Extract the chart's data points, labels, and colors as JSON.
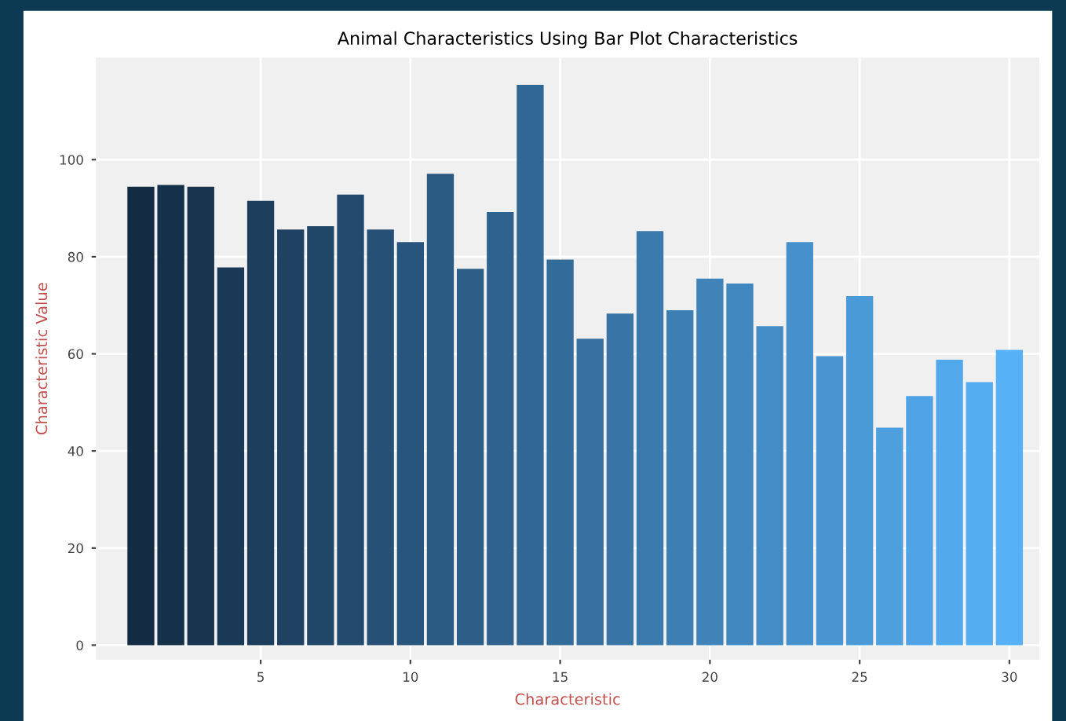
{
  "chart_data": {
    "type": "bar",
    "title": "Animal Characteristics Using Bar Plot Characteristics",
    "xlabel": "Characteristic",
    "ylabel": "Characteristic Value",
    "x": [
      1,
      2,
      3,
      4,
      5,
      6,
      7,
      8,
      9,
      10,
      11,
      12,
      13,
      14,
      15,
      16,
      17,
      18,
      19,
      20,
      21,
      22,
      23,
      24,
      25,
      26,
      27,
      28,
      29,
      30
    ],
    "values": [
      94.4,
      94.8,
      94.4,
      77.8,
      91.5,
      85.6,
      86.3,
      92.8,
      85.6,
      83.0,
      97.1,
      77.5,
      89.2,
      115.4,
      79.4,
      63.1,
      68.3,
      85.3,
      69.0,
      75.5,
      74.5,
      65.7,
      83.0,
      59.5,
      71.9,
      44.8,
      51.3,
      58.8,
      54.2,
      60.8
    ],
    "colors": [
      "#132B43",
      "#153049",
      "#18344F",
      "#1A3956",
      "#1C3E5C",
      "#1F4262",
      "#214768",
      "#234B6E",
      "#265075",
      "#28557B",
      "#2A5981",
      "#2C5E87",
      "#2F628E",
      "#316794",
      "#336C9A",
      "#3670A0",
      "#3875A6",
      "#3A7AAD",
      "#3D7EB3",
      "#3F83B9",
      "#4187BF",
      "#448CC5",
      "#4691CC",
      "#4895D2",
      "#4A9AD8",
      "#4D9FDE",
      "#4FA3E4",
      "#51A8EB",
      "#54ACF1",
      "#56B1F7"
    ],
    "xlim": [
      -0.5,
      31
    ],
    "xticks": [
      5,
      10,
      15,
      20,
      25,
      30
    ],
    "ylim": [
      -3,
      121
    ],
    "yticks": [
      0,
      20,
      40,
      60,
      80,
      100
    ],
    "grid": true
  }
}
